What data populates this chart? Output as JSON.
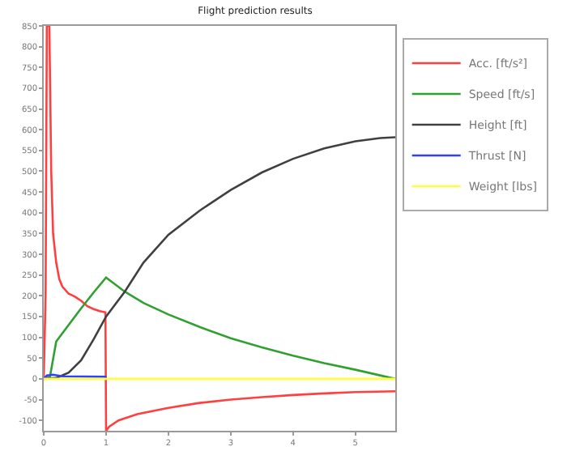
{
  "chart_data": {
    "type": "line",
    "title": "Flight prediction results",
    "xlim": [
      0,
      5.64
    ],
    "xticks": [
      0,
      1,
      2,
      3,
      4,
      5
    ],
    "ylim": [
      -125,
      850
    ],
    "yticks": [
      -100,
      -50,
      0,
      50,
      100,
      150,
      200,
      250,
      300,
      350,
      400,
      450,
      500,
      550,
      600,
      650,
      700,
      750,
      800,
      850
    ],
    "legend": "top right",
    "marker": "none",
    "line_style": "solid",
    "series": [
      {
        "name": "Acc. [ft/s²]",
        "color": "#ff4040",
        "x": [
          0,
          0.03,
          0.05,
          0.09,
          0.12,
          0.15,
          0.2,
          0.25,
          0.3,
          0.4,
          0.5,
          0.6,
          0.7,
          0.8,
          0.9,
          0.99,
          1.0,
          1.05,
          1.2,
          1.5,
          2,
          2.5,
          3,
          3.5,
          4,
          4.5,
          5,
          5.64
        ],
        "values": [
          0,
          200,
          850,
          850,
          500,
          350,
          280,
          240,
          222,
          205,
          198,
          188,
          175,
          168,
          163,
          160,
          -125,
          -115,
          -100,
          -85,
          -70,
          -58,
          -50,
          -44,
          -39,
          -35,
          -32,
          -30
        ]
      },
      {
        "name": "Speed [ft/s]",
        "color": "#30a030",
        "x": [
          0,
          0.1,
          0.2,
          0.4,
          0.6,
          0.8,
          1.0,
          1.3,
          1.6,
          2,
          2.5,
          3,
          3.5,
          4,
          4.5,
          5,
          5.64
        ],
        "values": [
          0,
          5,
          90,
          130,
          170,
          208,
          244,
          210,
          183,
          155,
          125,
          98,
          76,
          56,
          38,
          22,
          0
        ]
      },
      {
        "name": "Height [ft]",
        "color": "#404040",
        "x": [
          0,
          0.2,
          0.4,
          0.6,
          0.8,
          1.0,
          1.3,
          1.6,
          2,
          2.5,
          3,
          3.5,
          4,
          4.5,
          5,
          5.4,
          5.64
        ],
        "values": [
          0,
          2,
          15,
          45,
          95,
          150,
          210,
          280,
          347,
          405,
          455,
          497,
          530,
          555,
          572,
          580,
          582
        ]
      },
      {
        "name": "Thrust [N]",
        "color": "#3040ff",
        "x": [
          0,
          0.05,
          0.15,
          0.3,
          0.99,
          1.0
        ],
        "values": [
          0,
          8,
          10,
          6,
          5,
          0
        ]
      },
      {
        "name": "Weight [lbs]",
        "color": "#ffff40",
        "x": [
          0,
          5.64
        ],
        "values": [
          0,
          0
        ]
      }
    ]
  }
}
